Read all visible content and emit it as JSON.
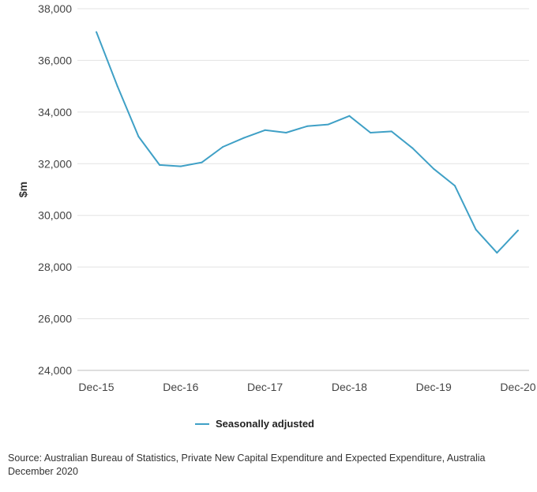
{
  "chart_data": {
    "type": "line",
    "title": "",
    "xlabel": "",
    "ylabel": "$m",
    "ylim": [
      24000,
      38000
    ],
    "yticks": [
      24000,
      26000,
      28000,
      30000,
      32000,
      34000,
      36000,
      38000
    ],
    "ytick_labels": [
      "24,000",
      "26,000",
      "28,000",
      "30,000",
      "32,000",
      "34,000",
      "36,000",
      "38,000"
    ],
    "x": [
      "Dec-15",
      "Mar-16",
      "Jun-16",
      "Sep-16",
      "Dec-16",
      "Mar-17",
      "Jun-17",
      "Sep-17",
      "Dec-17",
      "Mar-18",
      "Jun-18",
      "Sep-18",
      "Dec-18",
      "Mar-19",
      "Jun-19",
      "Sep-19",
      "Dec-19",
      "Mar-20",
      "Jun-20",
      "Sep-20",
      "Dec-20"
    ],
    "xtick_labels": [
      "Dec-15",
      "Dec-16",
      "Dec-17",
      "Dec-18",
      "Dec-19",
      "Dec-20"
    ],
    "grid": true,
    "legend_position": "bottom",
    "series": [
      {
        "name": "Seasonally adjusted",
        "color": "#3fa0c6",
        "values": [
          37100,
          35000,
          33050,
          31950,
          31900,
          32050,
          32650,
          33000,
          33300,
          33200,
          33450,
          33520,
          33850,
          33200,
          33250,
          32600,
          31800,
          31150,
          29450,
          28550,
          29420
        ]
      }
    ]
  },
  "source_text": "Source: Australian Bureau of Statistics, Private New Capital Expenditure and Expected Expenditure, Australia December 2020"
}
